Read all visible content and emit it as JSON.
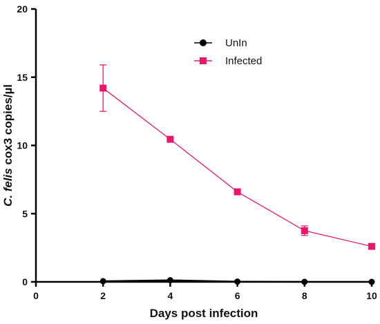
{
  "chart_data": {
    "type": "line",
    "title": "",
    "xlabel": "Days post infection",
    "ylabel_parts": {
      "italic": "C. felis",
      "rest": " cox3 copies/µl"
    },
    "xlim": [
      0,
      10
    ],
    "ylim": [
      0,
      20
    ],
    "x_ticks": [
      "0",
      "2",
      "4",
      "6",
      "8",
      "10"
    ],
    "y_ticks": [
      "0",
      "5",
      "10",
      "15",
      "20"
    ],
    "x_tick_values": [
      0,
      2,
      4,
      6,
      8,
      10
    ],
    "y_tick_values": [
      0,
      5,
      10,
      15,
      20
    ],
    "legend_position": "top-center",
    "series": [
      {
        "name": "UnIn",
        "color": "#000000",
        "marker": "circle",
        "x": [
          2,
          4,
          6,
          8,
          10
        ],
        "y": [
          0.05,
          0.12,
          0.02,
          0.0,
          0.0
        ],
        "error": [
          0,
          0,
          0,
          0,
          0
        ]
      },
      {
        "name": "Infected",
        "color": "#e8176b",
        "marker": "square",
        "x": [
          2,
          4,
          6,
          8,
          10
        ],
        "y": [
          14.2,
          10.45,
          6.6,
          3.75,
          2.6
        ],
        "error": [
          1.7,
          0.1,
          0.1,
          0.35,
          0.05
        ]
      }
    ]
  }
}
